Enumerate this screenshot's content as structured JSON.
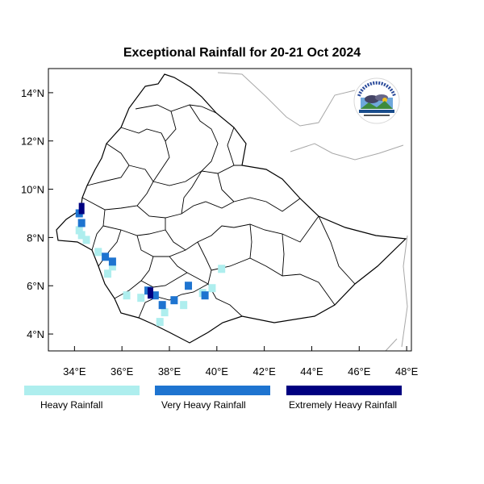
{
  "title": "Exceptional Rainfall for 20-21 Oct 2024",
  "map": {
    "lon_range": [
      32.9,
      48.2
    ],
    "lat_range": [
      3.3,
      15.0
    ],
    "y_ticks": [
      {
        "lat": 4,
        "label": "4°N"
      },
      {
        "lat": 6,
        "label": "6°N"
      },
      {
        "lat": 8,
        "label": "8°N"
      },
      {
        "lat": 10,
        "label": "10°N"
      },
      {
        "lat": 12,
        "label": "12°N"
      },
      {
        "lat": 14,
        "label": "14°N"
      }
    ],
    "x_ticks": [
      {
        "lon": 34,
        "label": "34°E"
      },
      {
        "lon": 36,
        "label": "36°E"
      },
      {
        "lon": 38,
        "label": "38°E"
      },
      {
        "lon": 40,
        "label": "40°E"
      },
      {
        "lon": 42,
        "label": "42°E"
      },
      {
        "lon": 44,
        "label": "44°E"
      },
      {
        "lon": 46,
        "label": "46°E"
      },
      {
        "lon": 48,
        "label": "48°E"
      }
    ]
  },
  "legend": [
    {
      "label": "Heavy Rainfall",
      "color": "#aeeeee"
    },
    {
      "label": "Very Heavy Rainfall",
      "color": "#1e74d0"
    },
    {
      "label": "Extremely Heavy Rainfall",
      "color": "#000080"
    }
  ],
  "rainfall_areas": [
    {
      "class": "heavy",
      "lon": 34.3,
      "lat": 8.1
    },
    {
      "class": "heavy",
      "lon": 34.5,
      "lat": 7.9
    },
    {
      "class": "heavy",
      "lon": 35.0,
      "lat": 7.4
    },
    {
      "class": "heavy",
      "lon": 35.6,
      "lat": 6.8
    },
    {
      "class": "heavy",
      "lon": 35.4,
      "lat": 6.5
    },
    {
      "class": "heavy",
      "lon": 36.2,
      "lat": 5.6
    },
    {
      "class": "heavy",
      "lon": 36.8,
      "lat": 5.5
    },
    {
      "class": "heavy",
      "lon": 37.8,
      "lat": 4.9
    },
    {
      "class": "heavy",
      "lon": 37.6,
      "lat": 4.5
    },
    {
      "class": "heavy",
      "lon": 38.6,
      "lat": 5.2
    },
    {
      "class": "heavy",
      "lon": 39.4,
      "lat": 5.7
    },
    {
      "class": "heavy",
      "lon": 39.8,
      "lat": 5.9
    },
    {
      "class": "heavy",
      "lon": 40.2,
      "lat": 6.7
    },
    {
      "class": "heavy",
      "lon": 34.2,
      "lat": 8.3
    },
    {
      "class": "very_heavy",
      "lon": 34.2,
      "lat": 9.0
    },
    {
      "class": "very_heavy",
      "lon": 34.3,
      "lat": 8.6
    },
    {
      "class": "very_heavy",
      "lon": 35.3,
      "lat": 7.2
    },
    {
      "class": "very_heavy",
      "lon": 35.6,
      "lat": 7.0
    },
    {
      "class": "very_heavy",
      "lon": 37.1,
      "lat": 5.8
    },
    {
      "class": "very_heavy",
      "lon": 37.7,
      "lat": 5.2
    },
    {
      "class": "very_heavy",
      "lon": 38.2,
      "lat": 5.4
    },
    {
      "class": "very_heavy",
      "lon": 38.8,
      "lat": 6.0
    },
    {
      "class": "very_heavy",
      "lon": 39.5,
      "lat": 5.6
    },
    {
      "class": "very_heavy",
      "lon": 37.4,
      "lat": 5.6
    },
    {
      "class": "extremely_heavy",
      "lon": 34.3,
      "lat": 9.2
    },
    {
      "class": "extremely_heavy",
      "lon": 37.2,
      "lat": 5.7
    }
  ]
}
